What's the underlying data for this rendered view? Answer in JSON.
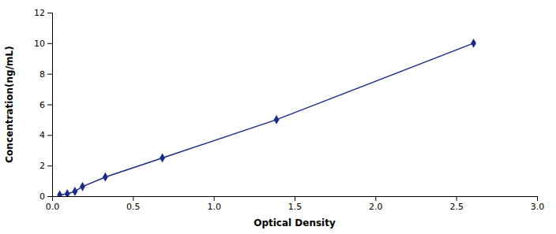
{
  "chart_data": {
    "type": "line",
    "xlabel": "Optical Density",
    "ylabel": "Concentration(ng/mL)",
    "x": [
      0.047,
      0.094,
      0.141,
      0.188,
      0.329,
      0.682,
      1.388,
      2.607
    ],
    "series": [
      {
        "values": [
          0.078,
          0.156,
          0.313,
          0.625,
          1.25,
          2.5,
          5.0,
          10.0
        ],
        "color": "#1B2A8A",
        "marker": "diamond",
        "line_style": "solid"
      }
    ],
    "xlim": [
      0,
      3
    ],
    "ylim": [
      0,
      12
    ],
    "xticks": [
      {
        "value": 0,
        "label": "0.0"
      },
      0.5,
      {
        "value": 1,
        "label": "1.0"
      },
      1.5,
      {
        "value": 2,
        "label": "2.0"
      },
      2.5,
      {
        "value": 3,
        "label": "3.0"
      }
    ],
    "yticks": [
      0,
      2,
      4,
      6,
      8,
      10,
      12
    ],
    "grid": false
  }
}
